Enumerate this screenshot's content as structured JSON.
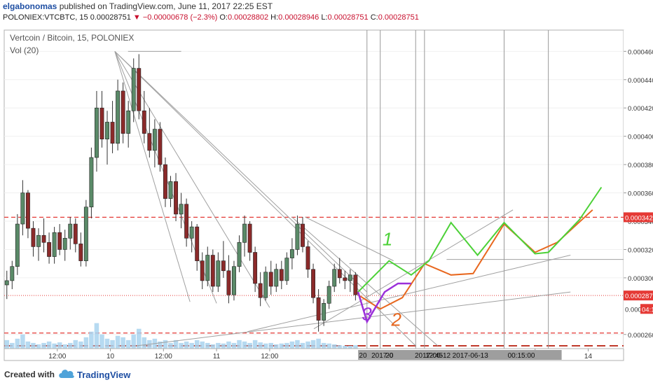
{
  "header": {
    "user": "elgabonomas",
    "published_text": " published on TradingView.com, June 11, 2017 22:25 EST",
    "symbol": "POLONIEX:VTCBTC, 15",
    "last": "0.00028751",
    "change": "▼ −0.00000678 (−2.3%)",
    "o_label": "O:",
    "o_value": "0.00028802",
    "h_label": "H:",
    "h_value": "0.00028946",
    "l_label": "L:",
    "l_value": "0.00028751",
    "c_label": "C:",
    "c_value": "0.00028751"
  },
  "legend": {
    "title": "Vertcoin / Bitcoin, 15, POLONIEX",
    "volume": "Vol (20)"
  },
  "footer": {
    "created_with": "Created with",
    "brand": "TradingView"
  },
  "colors": {
    "up": "#26a69a",
    "down": "#c0392b",
    "candle_body_up": "#5a8a68",
    "candle_body_down": "#8b2a2a",
    "volume": "#a9d4ee",
    "trendline": "#a0a0a0",
    "green_path": "#4cd137",
    "orange_path": "#e8671e",
    "purple_path": "#9b30d9",
    "price_red": "#e53935"
  },
  "chart_data": {
    "type": "candlestick",
    "title": "Vertcoin / Bitcoin, 15, POLONIEX",
    "y_range": [
      0.00025,
      0.000475
    ],
    "y_ticks": [
      "0.00046000",
      "0.00044000",
      "0.00042000",
      "0.00040000",
      "0.00038000",
      "0.00036000",
      "0.00034000",
      "0.00032000",
      "0.00030000",
      "0.00026000"
    ],
    "y_tick_values": [
      0.00046,
      0.00044,
      0.00042,
      0.0004,
      0.00038,
      0.00036,
      0.00034,
      0.00032,
      0.0003,
      0.00026
    ],
    "x_ticks": [
      "12:00",
      "10",
      "12:00",
      "11",
      "12:00",
      "12:00",
      "14"
    ],
    "x_tick_times": [
      12,
      24,
      36,
      48,
      60,
      120,
      132
    ],
    "x_range": [
      0,
      140
    ],
    "x_time_labels": [
      "20",
      "2017-0",
      "20",
      "2017-06-12",
      "12:45",
      "2017-06-13",
      "00:15:00"
    ],
    "price_labels": [
      {
        "text": "0.00034278",
        "value": 0.00034278
      },
      {
        "text": "0.00028751",
        "value": 0.00028751
      },
      {
        "text": "0.000",
        "value": 0.000282
      },
      {
        "text": "04:19",
        "value": 0.000282
      }
    ],
    "horizontal_levels": [
      0.00034278,
      0.00028751,
      0.000261,
      0.000252
    ],
    "candles": [
      [
        0.000295,
        0.000305,
        0.000285,
        0.000298
      ],
      [
        0.000298,
        0.000312,
        0.000292,
        0.000308
      ],
      [
        0.000308,
        0.000345,
        0.000302,
        0.000338
      ],
      [
        0.000338,
        0.000369,
        0.00033,
        0.00036
      ],
      [
        0.00036,
        0.000362,
        0.000328,
        0.000335
      ],
      [
        0.000335,
        0.00034,
        0.000315,
        0.000322
      ],
      [
        0.000322,
        0.000335,
        0.000312,
        0.00033
      ],
      [
        0.00033,
        0.000342,
        0.000318,
        0.000325
      ],
      [
        0.000325,
        0.000332,
        0.00031,
        0.000315
      ],
      [
        0.000315,
        0.000336,
        0.00031,
        0.000332
      ],
      [
        0.000332,
        0.000338,
        0.000316,
        0.00032
      ],
      [
        0.00032,
        0.000334,
        0.000312,
        0.000328
      ],
      [
        0.000328,
        0.000343,
        0.00032,
        0.000338
      ],
      [
        0.000338,
        0.000342,
        0.000318,
        0.000324
      ],
      [
        0.000324,
        0.000332,
        0.000308,
        0.000312
      ],
      [
        0.000312,
        0.000355,
        0.000308,
        0.00035
      ],
      [
        0.00035,
        0.000392,
        0.000342,
        0.000385
      ],
      [
        0.000385,
        0.000432,
        0.000375,
        0.00042
      ],
      [
        0.00042,
        0.000432,
        0.000392,
        0.000398
      ],
      [
        0.000398,
        0.000418,
        0.00038,
        0.00041
      ],
      [
        0.00041,
        0.000425,
        0.000388,
        0.000395
      ],
      [
        0.000395,
        0.00044,
        0.00039,
        0.000432
      ],
      [
        0.000432,
        0.000438,
        0.000395,
        0.000402
      ],
      [
        0.000402,
        0.000425,
        0.000392,
        0.000418
      ],
      [
        0.000418,
        0.000455,
        0.00041,
        0.000448
      ],
      [
        0.000448,
        0.000458,
        0.000412,
        0.000418
      ],
      [
        0.000418,
        0.000432,
        0.000395,
        0.000402
      ],
      [
        0.000402,
        0.00042,
        0.000385,
        0.00039
      ],
      [
        0.00039,
        0.000412,
        0.000378,
        0.000405
      ],
      [
        0.000405,
        0.00041,
        0.000375,
        0.00038
      ],
      [
        0.00038,
        0.000385,
        0.00035,
        0.000356
      ],
      [
        0.000356,
        0.000372,
        0.00035,
        0.000368
      ],
      [
        0.000368,
        0.000374,
        0.00034,
        0.000345
      ],
      [
        0.000345,
        0.00036,
        0.000335,
        0.000352
      ],
      [
        0.000352,
        0.000356,
        0.000322,
        0.000328
      ],
      [
        0.000328,
        0.00034,
        0.000318,
        0.000336
      ],
      [
        0.000336,
        0.000338,
        0.000305,
        0.000312
      ],
      [
        0.000312,
        0.000318,
        0.000292,
        0.000298
      ],
      [
        0.000298,
        0.000322,
        0.000294,
        0.000316
      ],
      [
        0.000316,
        0.00032,
        0.00029,
        0.000294
      ],
      [
        0.000294,
        0.000318,
        0.00029,
        0.000312
      ],
      [
        0.000312,
        0.000326,
        0.0003,
        0.000305
      ],
      [
        0.000305,
        0.000316,
        0.000282,
        0.000288
      ],
      [
        0.000288,
        0.000312,
        0.000284,
        0.000308
      ],
      [
        0.000308,
        0.00033,
        0.000304,
        0.000325
      ],
      [
        0.000325,
        0.000344,
        0.000315,
        0.000338
      ],
      [
        0.000338,
        0.00034,
        0.000312,
        0.000318
      ],
      [
        0.000318,
        0.000322,
        0.00029,
        0.000296
      ],
      [
        0.000296,
        0.000304,
        0.00028,
        0.000286
      ],
      [
        0.000286,
        0.000308,
        0.000284,
        0.000304
      ],
      [
        0.000304,
        0.000312,
        0.000288,
        0.000294
      ],
      [
        0.000294,
        0.00031,
        0.00029,
        0.000306
      ],
      [
        0.000306,
        0.000312,
        0.000292,
        0.000298
      ],
      [
        0.000298,
        0.000318,
        0.000295,
        0.000314
      ],
      [
        0.000314,
        0.000328,
        0.000306,
        0.00032
      ],
      [
        0.00032,
        0.000344,
        0.000316,
        0.000338
      ],
      [
        0.000338,
        0.000343,
        0.000318,
        0.000322
      ],
      [
        0.000322,
        0.000326,
        0.0003,
        0.000306
      ],
      [
        0.000306,
        0.00031,
        0.000282,
        0.000286
      ],
      [
        0.000286,
        0.000292,
        0.000262,
        0.00027
      ],
      [
        0.00027,
        0.000285,
        0.000266,
        0.000282
      ],
      [
        0.000282,
        0.000298,
        0.000278,
        0.000294
      ],
      [
        0.000294,
        0.00031,
        0.00029,
        0.000306
      ],
      [
        0.000306,
        0.000314,
        0.000296,
        0.0003
      ],
      [
        0.0003,
        0.000305,
        0.000292,
        0.000298
      ],
      [
        0.000298,
        0.000306,
        0.00029,
        0.000302
      ],
      [
        0.000302,
        0.000304,
        0.000284,
        0.000288
      ]
    ],
    "volume_max": 1,
    "volumes": [
      0.3,
      0.2,
      0.35,
      0.5,
      0.25,
      0.2,
      0.15,
      0.2,
      0.25,
      0.18,
      0.22,
      0.15,
      0.2,
      0.3,
      0.25,
      0.4,
      0.6,
      0.9,
      0.5,
      0.35,
      0.3,
      0.45,
      0.4,
      0.3,
      0.5,
      0.7,
      0.4,
      0.3,
      0.35,
      0.25,
      0.3,
      0.2,
      0.3,
      0.2,
      0.25,
      0.2,
      0.3,
      0.25,
      0.2,
      0.15,
      0.2,
      0.18,
      0.25,
      0.2,
      0.3,
      0.25,
      0.2,
      0.3,
      0.22,
      0.18,
      0.2,
      0.15,
      0.18,
      0.2,
      0.25,
      0.3,
      0.2,
      0.25,
      0.3,
      0.35,
      0.2,
      0.18,
      0.15,
      0.12,
      0.1,
      0.1,
      0.12
    ],
    "annotations": [
      {
        "text": "1",
        "color": "#4cd137",
        "t": 85.5,
        "v": 0.000323
      },
      {
        "text": "3",
        "color": "#9b30d9",
        "t": 80.8,
        "v": 0.00027
      },
      {
        "text": "2",
        "color": "#e8671e",
        "t": 87.5,
        "v": 0.000266
      }
    ],
    "forecast_paths": {
      "green": [
        [
          80,
          0.00029
        ],
        [
          87,
          0.000312
        ],
        [
          92,
          0.000302
        ],
        [
          96,
          0.000312
        ],
        [
          101,
          0.000339
        ],
        [
          107,
          0.000316
        ],
        [
          113,
          0.000339
        ],
        [
          120,
          0.000317
        ],
        [
          123,
          0.000318
        ],
        [
          130,
          0.000341
        ],
        [
          135,
          0.000364
        ]
      ],
      "orange": [
        [
          80,
          0.000288
        ],
        [
          85,
          0.000278
        ],
        [
          90,
          0.000286
        ],
        [
          95,
          0.00031
        ],
        [
          101,
          0.000302
        ],
        [
          106,
          0.000303
        ],
        [
          113,
          0.000338
        ],
        [
          120,
          0.000318
        ],
        [
          125,
          0.000325
        ],
        [
          133,
          0.000348
        ]
      ],
      "purple": [
        [
          80,
          0.00029
        ],
        [
          82,
          0.000269
        ],
        [
          86,
          0.00029
        ],
        [
          89,
          0.000296
        ],
        [
          92,
          0.000296
        ]
      ]
    },
    "trendlines": [
      [
        [
          25,
          0.00046
        ],
        [
          82,
          0.00029
        ]
      ],
      [
        [
          25,
          0.00046
        ],
        [
          60,
          0.000279
        ]
      ],
      [
        [
          25,
          0.00046
        ],
        [
          48,
          0.000282
        ]
      ],
      [
        [
          25,
          0.00046
        ],
        [
          42,
          0.000283
        ]
      ],
      [
        [
          25,
          0.00046
        ],
        [
          93,
          0.000252
        ]
      ],
      [
        [
          28,
          0.00046
        ],
        [
          40,
          0.00046
        ]
      ],
      [
        [
          68,
          0.000343
        ],
        [
          88,
          0.000312
        ]
      ],
      [
        [
          70,
          0.000264
        ],
        [
          115,
          0.000348
        ]
      ],
      [
        [
          55,
          0.000262
        ],
        [
          128,
          0.000316
        ]
      ],
      [
        [
          30,
          0.000252
        ],
        [
          128,
          0.00029
        ]
      ],
      [
        [
          78,
          0.00031
        ],
        [
          95,
          0.00031
        ]
      ],
      [
        [
          100,
          0.000313
        ],
        [
          140,
          0.000313
        ]
      ],
      [
        [
          65,
          0.000343
        ],
        [
          98,
          0.000252
        ]
      ]
    ],
    "vertical_lines": [
      82,
      85,
      93,
      95,
      113,
      123
    ]
  }
}
